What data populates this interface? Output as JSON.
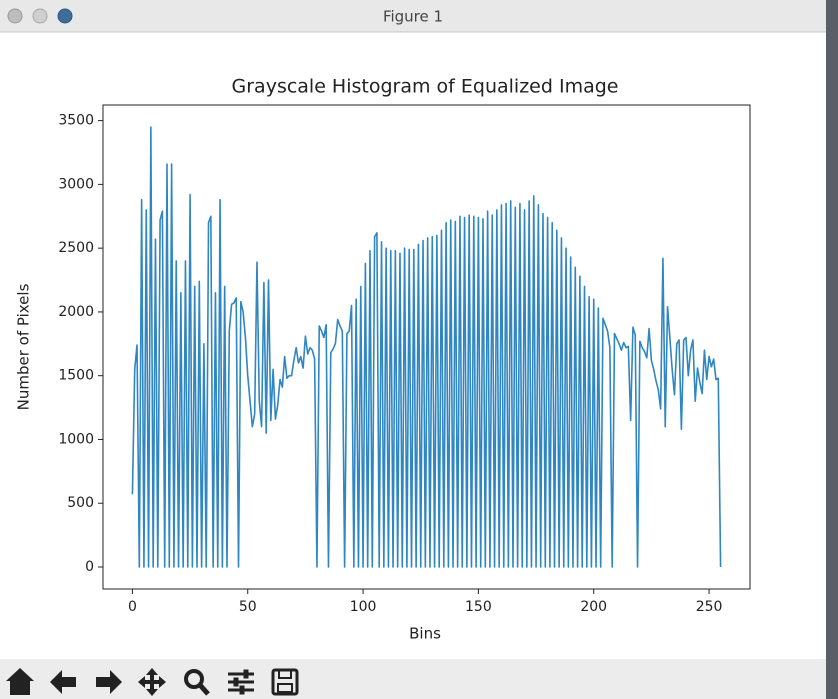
{
  "window_title": "Figure 1",
  "chart_data": {
    "type": "line",
    "title": "Grayscale Histogram of Equalized Image",
    "x_label": "Bins",
    "y_label": "Number of Pixels",
    "color": "#2f86c0",
    "x": [
      0,
      1,
      2,
      3,
      4,
      5,
      6,
      7,
      8,
      9,
      10,
      11,
      12,
      13,
      14,
      15,
      16,
      17,
      18,
      19,
      20,
      21,
      22,
      23,
      24,
      25,
      26,
      27,
      28,
      29,
      30,
      31,
      32,
      33,
      34,
      35,
      36,
      37,
      38,
      39,
      40,
      41,
      42,
      43,
      44,
      45,
      46,
      47,
      48,
      49,
      50,
      51,
      52,
      53,
      54,
      55,
      56,
      57,
      58,
      59,
      60,
      61,
      62,
      63,
      64,
      65,
      66,
      67,
      68,
      69,
      70,
      71,
      72,
      73,
      74,
      75,
      76,
      77,
      78,
      79,
      80,
      81,
      82,
      83,
      84,
      85,
      86,
      87,
      88,
      89,
      90,
      91,
      92,
      93,
      94,
      95,
      96,
      97,
      98,
      99,
      100,
      101,
      102,
      103,
      104,
      105,
      106,
      107,
      108,
      109,
      110,
      111,
      112,
      113,
      114,
      115,
      116,
      117,
      118,
      119,
      120,
      121,
      122,
      123,
      124,
      125,
      126,
      127,
      128,
      129,
      130,
      131,
      132,
      133,
      134,
      135,
      136,
      137,
      138,
      139,
      140,
      141,
      142,
      143,
      144,
      145,
      146,
      147,
      148,
      149,
      150,
      151,
      152,
      153,
      154,
      155,
      156,
      157,
      158,
      159,
      160,
      161,
      162,
      163,
      164,
      165,
      166,
      167,
      168,
      169,
      170,
      171,
      172,
      173,
      174,
      175,
      176,
      177,
      178,
      179,
      180,
      181,
      182,
      183,
      184,
      185,
      186,
      187,
      188,
      189,
      190,
      191,
      192,
      193,
      194,
      195,
      196,
      197,
      198,
      199,
      200,
      201,
      202,
      203,
      204,
      205,
      206,
      207,
      208,
      209,
      210,
      211,
      212,
      213,
      214,
      215,
      216,
      217,
      218,
      219,
      220,
      221,
      222,
      223,
      224,
      225,
      226,
      227,
      228,
      229,
      230,
      231,
      232,
      233,
      234,
      235,
      236,
      237,
      238,
      239,
      240,
      241,
      242,
      243,
      244,
      245,
      246,
      247,
      248,
      249,
      250,
      251,
      252,
      253,
      254,
      255
    ],
    "values": [
      570,
      1550,
      1740,
      0,
      2880,
      0,
      2800,
      0,
      3450,
      0,
      2570,
      0,
      2720,
      2790,
      0,
      3160,
      0,
      3160,
      0,
      2400,
      0,
      2150,
      0,
      2400,
      0,
      2920,
      0,
      2200,
      0,
      2240,
      0,
      1750,
      0,
      2700,
      2750,
      0,
      2150,
      0,
      2880,
      0,
      2200,
      0,
      1850,
      2060,
      2070,
      2110,
      0,
      2080,
      2000,
      1800,
      1500,
      1300,
      1100,
      1200,
      2390,
      1300,
      1100,
      2230,
      1050,
      2250,
      1150,
      1550,
      1160,
      1270,
      1470,
      1410,
      1650,
      1480,
      1500,
      1500,
      1620,
      1720,
      1600,
      1650,
      1560,
      1810,
      1670,
      1720,
      1700,
      1630,
      0,
      1890,
      1850,
      1800,
      1900,
      0,
      1680,
      1710,
      1750,
      1940,
      1890,
      1850,
      0,
      1830,
      1850,
      2050,
      0,
      2100,
      0,
      2200,
      0,
      2380,
      0,
      2480,
      0,
      2590,
      2620,
      0,
      2550,
      0,
      2500,
      0,
      2480,
      0,
      2480,
      0,
      2460,
      0,
      2500,
      0,
      2490,
      0,
      2490,
      0,
      2530,
      0,
      2560,
      0,
      2580,
      0,
      2590,
      0,
      2600,
      0,
      2640,
      0,
      2700,
      0,
      2720,
      0,
      2710,
      0,
      2750,
      0,
      2740,
      0,
      2760,
      0,
      2750,
      0,
      2740,
      0,
      2730,
      0,
      2790,
      0,
      2760,
      0,
      2800,
      0,
      2840,
      0,
      2850,
      0,
      2870,
      0,
      2820,
      0,
      2850,
      0,
      2800,
      0,
      2870,
      0,
      2910,
      0,
      2840,
      0,
      2770,
      0,
      2740,
      0,
      2700,
      0,
      2640,
      0,
      2580,
      0,
      2500,
      0,
      2430,
      0,
      2350,
      0,
      2280,
      0,
      2200,
      0,
      2120,
      0,
      2100,
      0,
      2030,
      0,
      1950,
      1900,
      1850,
      1720,
      0,
      1830,
      1790,
      1750,
      1700,
      1760,
      1720,
      1730,
      1150,
      1880,
      1820,
      0,
      1770,
      1720,
      1690,
      1640,
      1870,
      1620,
      1550,
      1460,
      1390,
      1240,
      2420,
      1100,
      2040,
      1800,
      1550,
      1350,
      1750,
      1780,
      1080,
      1780,
      1800,
      1500,
      1700,
      1780,
      1300,
      1560,
      1450,
      1360,
      1700,
      1470,
      1650,
      1570,
      1630,
      1470,
      1480,
      0
    ],
    "xlim": [
      -12.75,
      267.75
    ],
    "xticks": [
      0,
      50,
      100,
      150,
      200,
      250
    ],
    "ylim": [
      -172.5,
      3622.5
    ],
    "yticks": [
      0,
      500,
      1000,
      1500,
      2000,
      2500,
      3000,
      3500
    ]
  }
}
